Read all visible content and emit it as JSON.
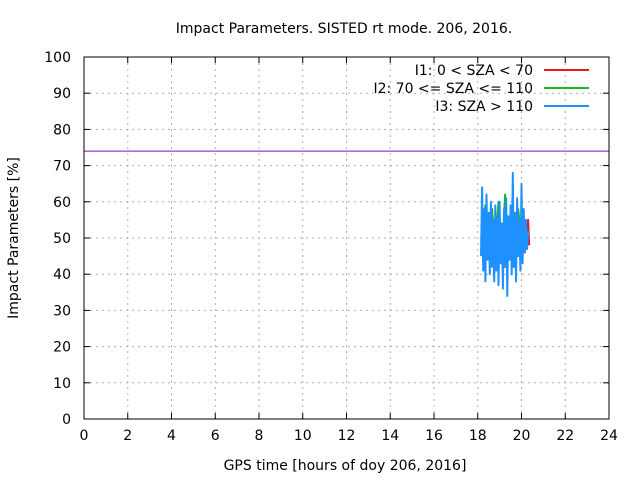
{
  "chart_data": {
    "type": "line",
    "title": "Impact Parameters. SISTED rt mode. 206, 2016.",
    "xlabel": "GPS time [hours of doy 206, 2016]",
    "ylabel": "Impact Parameters [%]",
    "xlim": [
      0,
      24
    ],
    "ylim": [
      0,
      100
    ],
    "xticks": [
      0,
      2,
      4,
      6,
      8,
      10,
      12,
      14,
      16,
      18,
      20,
      22,
      24
    ],
    "yticks": [
      0,
      10,
      20,
      30,
      40,
      50,
      60,
      70,
      80,
      90,
      100
    ],
    "grid": true,
    "legend_position": "top-right",
    "reference_line": {
      "y": 74,
      "color": "#9400d3"
    },
    "series": [
      {
        "name": "I1: 0 < SZA < 70",
        "color": "#e41a1c",
        "x": [
          20.05,
          20.1,
          20.15,
          20.2,
          20.25,
          20.3,
          20.35
        ],
        "y": [
          49,
          53,
          46,
          52,
          47,
          55,
          48
        ]
      },
      {
        "name": "I2: 70 <= SZA <= 110",
        "color": "#1fb41f",
        "x": [
          18.2,
          18.35,
          18.5,
          18.65,
          18.8,
          18.95,
          19.1,
          19.25,
          19.4,
          19.55,
          19.7,
          19.85,
          20.0
        ],
        "y": [
          52,
          59,
          45,
          58,
          47,
          60,
          43,
          62,
          44,
          57,
          46,
          58,
          49
        ]
      },
      {
        "name": "I3: SZA > 110",
        "color": "#1e90ff",
        "x": [
          18.15,
          18.2,
          18.25,
          18.3,
          18.35,
          18.4,
          18.45,
          18.5,
          18.55,
          18.6,
          18.65,
          18.7,
          18.75,
          18.8,
          18.85,
          18.9,
          18.95,
          19.0,
          19.05,
          19.1,
          19.15,
          19.2,
          19.25,
          19.3,
          19.35,
          19.4,
          19.45,
          19.5,
          19.55,
          19.6,
          19.65,
          19.7,
          19.75,
          19.8,
          19.85,
          19.9,
          19.95,
          20.0,
          20.05,
          20.1,
          20.15,
          20.2,
          20.25,
          20.3
        ],
        "y": [
          45,
          64,
          41,
          58,
          38,
          62,
          44,
          57,
          40,
          60,
          42,
          55,
          38,
          59,
          41,
          56,
          37,
          60,
          43,
          54,
          36,
          58,
          42,
          61,
          34,
          56,
          44,
          59,
          40,
          68,
          42,
          57,
          38,
          61,
          45,
          55,
          41,
          65,
          43,
          58,
          46,
          55,
          47,
          52
        ]
      }
    ]
  }
}
